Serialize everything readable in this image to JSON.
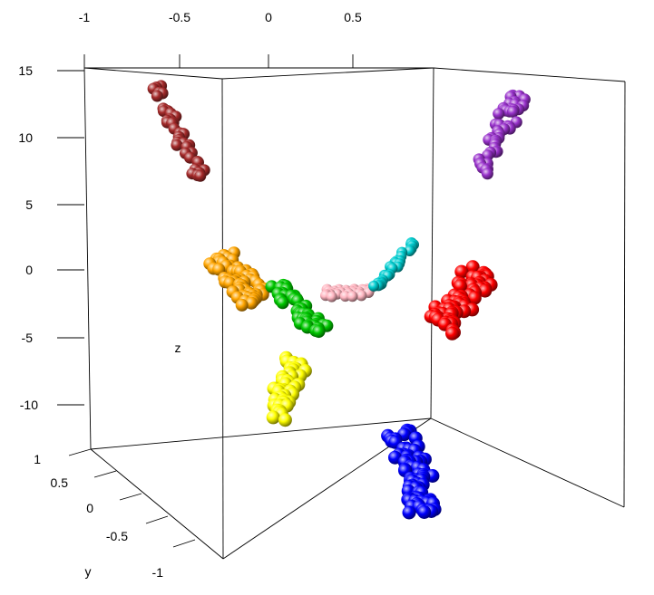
{
  "chart_data": {
    "type": "scatter",
    "title": "",
    "xlabel": "",
    "ylabel": "y",
    "zlabel": "z",
    "xlim": [
      -1,
      1
    ],
    "ylim": [
      -1,
      1
    ],
    "zlim": [
      -15,
      15
    ],
    "x_ticks": [
      "-1",
      "-0.5",
      "0",
      "0.5"
    ],
    "y_ticks": [
      "1",
      "0.5",
      "0",
      "-0.5",
      "-1"
    ],
    "z_ticks": [
      "15",
      "10",
      "5",
      "0",
      "-5",
      "-10"
    ],
    "grid": false,
    "legend": "none",
    "series": [
      {
        "color": "#a52a2a",
        "count": 42
      },
      {
        "color": "#9932cc",
        "count": 46
      },
      {
        "color": "#ffa500",
        "count": 60
      },
      {
        "color": "#00c800",
        "count": 50
      },
      {
        "color": "#ffb6c1",
        "count": 34
      },
      {
        "color": "#00ced1",
        "count": 30
      },
      {
        "color": "#ff0000",
        "count": 72
      },
      {
        "color": "#ffff00",
        "count": 52
      },
      {
        "color": "#0000ff",
        "count": 82
      }
    ]
  }
}
